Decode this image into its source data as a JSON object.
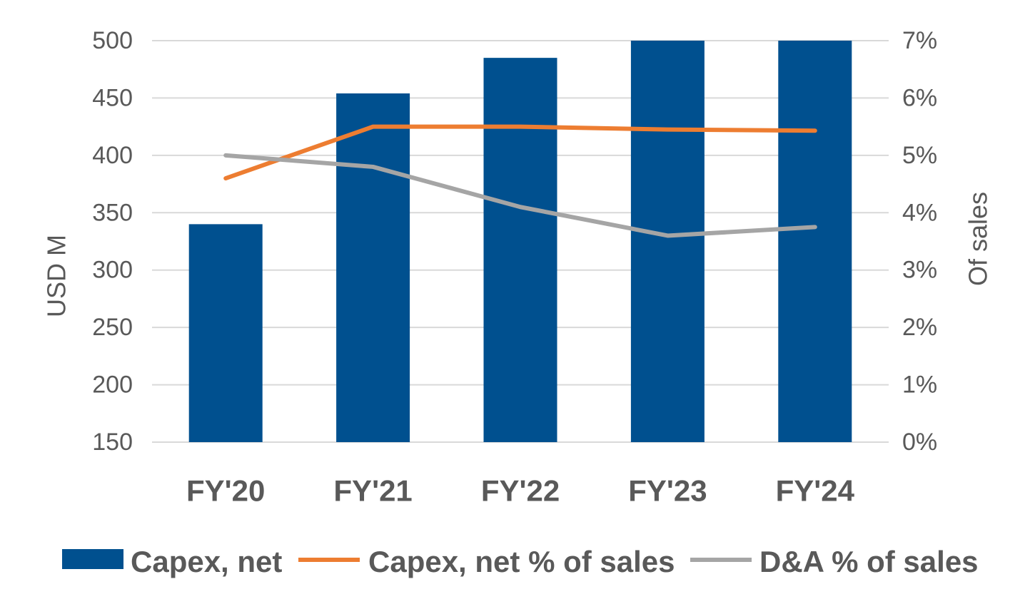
{
  "chart_data": {
    "type": "bar",
    "categories": [
      "FY'20",
      "FY'21",
      "FY'22",
      "FY'23",
      "FY'24"
    ],
    "series": [
      {
        "name": "Capex, net",
        "type": "bar",
        "axis": "left",
        "color": "#00508f",
        "values": [
          340,
          454,
          485,
          500,
          500
        ]
      },
      {
        "name": "Capex, net % of sales",
        "type": "line",
        "axis": "right",
        "color": "#ed7d31",
        "values": [
          4.6,
          5.5,
          5.5,
          5.45,
          5.43
        ]
      },
      {
        "name": "D&A % of sales",
        "type": "line",
        "axis": "right",
        "color": "#a5a5a5",
        "values": [
          5.0,
          4.8,
          4.1,
          3.6,
          3.75
        ]
      }
    ],
    "ylabel": "USD M",
    "y2label": "Of sales",
    "ylim": [
      150,
      500
    ],
    "y2lim": [
      0,
      7
    ],
    "yticks": [
      "150",
      "200",
      "250",
      "300",
      "350",
      "400",
      "450",
      "500"
    ],
    "y2ticks": [
      "0%",
      "1%",
      "2%",
      "3%",
      "4%",
      "5%",
      "6%",
      "7%"
    ],
    "grid": true,
    "legend_position": "bottom"
  }
}
